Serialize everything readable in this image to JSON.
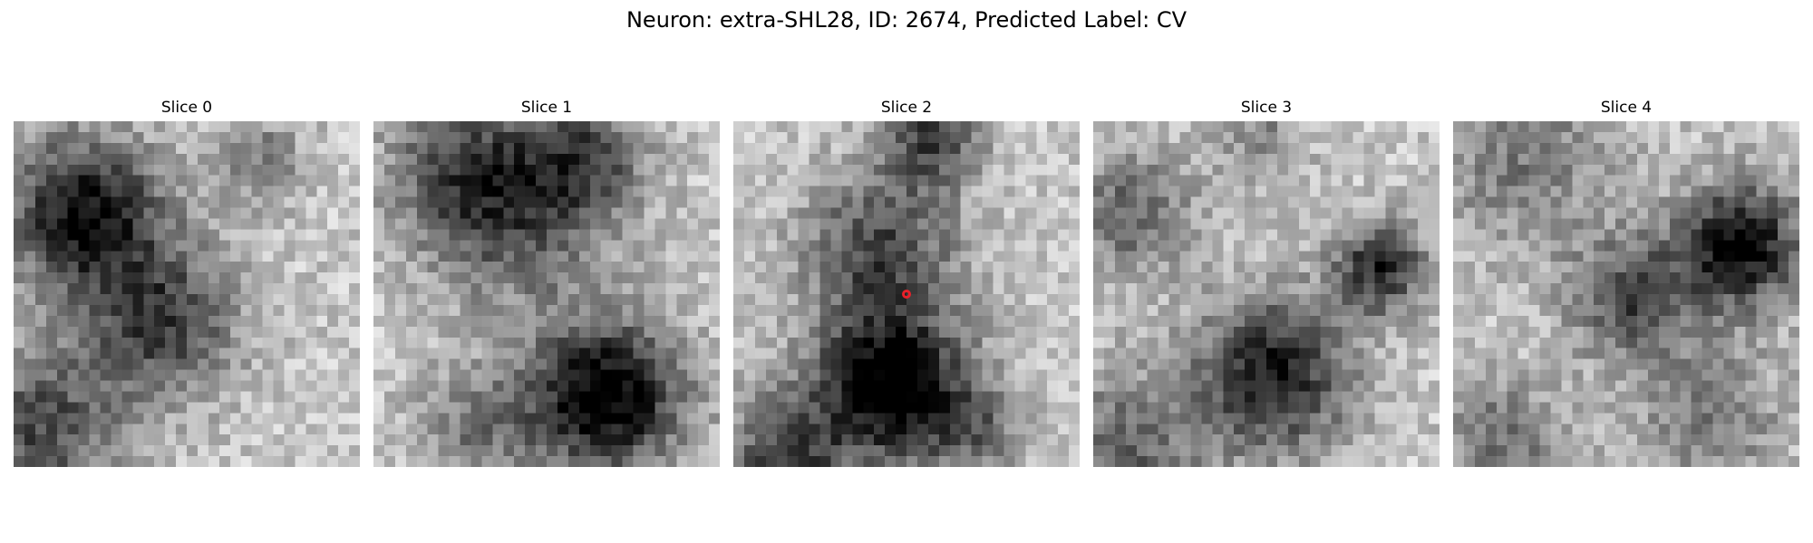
{
  "figure": {
    "title": "Neuron: extra-SHL28, ID: 2674, Predicted Label: CV"
  },
  "panels": [
    {
      "label": "Slice 0"
    },
    {
      "label": "Slice 1"
    },
    {
      "label": "Slice 2",
      "has_marker": true
    },
    {
      "label": "Slice 3"
    },
    {
      "label": "Slice 4"
    }
  ],
  "colors": {
    "marker": "#e8202a",
    "colormap": "grayscale"
  }
}
